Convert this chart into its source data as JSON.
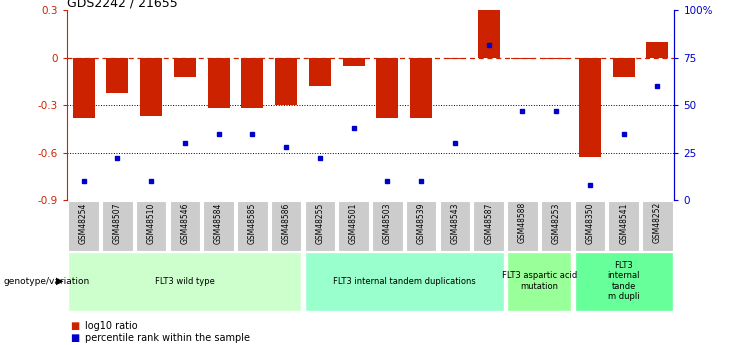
{
  "title": "GDS2242 / 21655",
  "samples": [
    "GSM48254",
    "GSM48507",
    "GSM48510",
    "GSM48546",
    "GSM48584",
    "GSM48585",
    "GSM48586",
    "GSM48255",
    "GSM48501",
    "GSM48503",
    "GSM48539",
    "GSM48543",
    "GSM48587",
    "GSM48588",
    "GSM48253",
    "GSM48350",
    "GSM48541",
    "GSM48252"
  ],
  "log10_ratio": [
    -0.38,
    -0.22,
    -0.37,
    -0.12,
    -0.32,
    -0.32,
    -0.3,
    -0.18,
    -0.05,
    -0.38,
    -0.38,
    -0.01,
    0.3,
    -0.01,
    -0.01,
    -0.63,
    -0.12,
    0.1
  ],
  "percentile_rank": [
    10,
    22,
    10,
    30,
    35,
    35,
    28,
    22,
    38,
    10,
    10,
    30,
    82,
    47,
    47,
    8,
    35,
    60
  ],
  "ylim_left": [
    -0.9,
    0.3
  ],
  "ylim_right": [
    0,
    100
  ],
  "bar_color": "#cc2200",
  "dot_color": "#0000cc",
  "groups": [
    {
      "label": "FLT3 wild type",
      "start": 0,
      "end": 6,
      "color": "#ccffcc"
    },
    {
      "label": "FLT3 internal tandem duplications",
      "start": 7,
      "end": 12,
      "color": "#99ffcc"
    },
    {
      "label": "FLT3 aspartic acid\nmutation",
      "start": 13,
      "end": 14,
      "color": "#99ff99"
    },
    {
      "label": "FLT3\ninternal\ntande\nm dupli",
      "start": 15,
      "end": 17,
      "color": "#66ff99"
    }
  ],
  "left_yticks": [
    0.3,
    0.0,
    -0.3,
    -0.6,
    -0.9
  ],
  "right_yticks": [
    100,
    75,
    50,
    25,
    0
  ],
  "right_ytick_labels": [
    "100%",
    "75",
    "50",
    "25",
    "0"
  ],
  "bar_color_hex": "#cc2200",
  "dot_color_hex": "#0000cc",
  "sample_box_color": "#cccccc",
  "sample_box_edge": "#ffffff"
}
